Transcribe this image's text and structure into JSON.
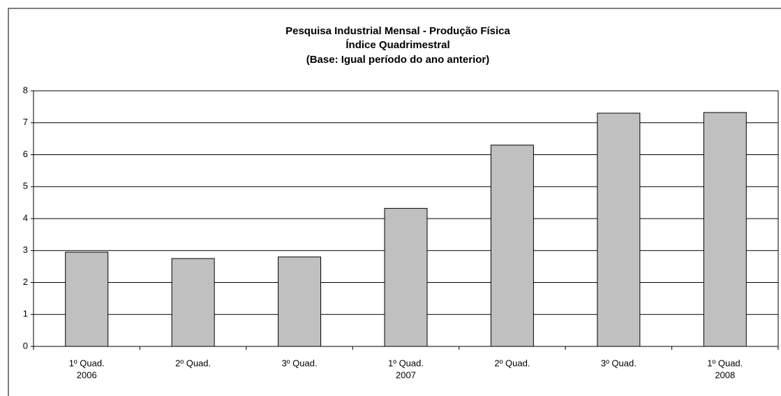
{
  "chart_data": {
    "type": "bar",
    "title": "Pesquisa Industrial Mensal - Produção Física",
    "subtitle": [
      "Índice Quadrimestral",
      "(Base: Igual período do ano anterior)"
    ],
    "categories": [
      [
        "1º Quad.",
        "2006"
      ],
      [
        "2º Quad."
      ],
      [
        "3º Quad."
      ],
      [
        "1º Quad.",
        "2007"
      ],
      [
        "2º Quad."
      ],
      [
        "3º Quad."
      ],
      [
        "1º Quad.",
        "2008"
      ]
    ],
    "values": [
      2.95,
      2.75,
      2.8,
      4.32,
      6.3,
      7.3,
      7.32
    ],
    "color": "#c0c0c0",
    "ylim": [
      0,
      8
    ],
    "yticks": [
      0,
      1,
      2,
      3,
      4,
      5,
      6,
      7,
      8
    ],
    "grid": true
  }
}
